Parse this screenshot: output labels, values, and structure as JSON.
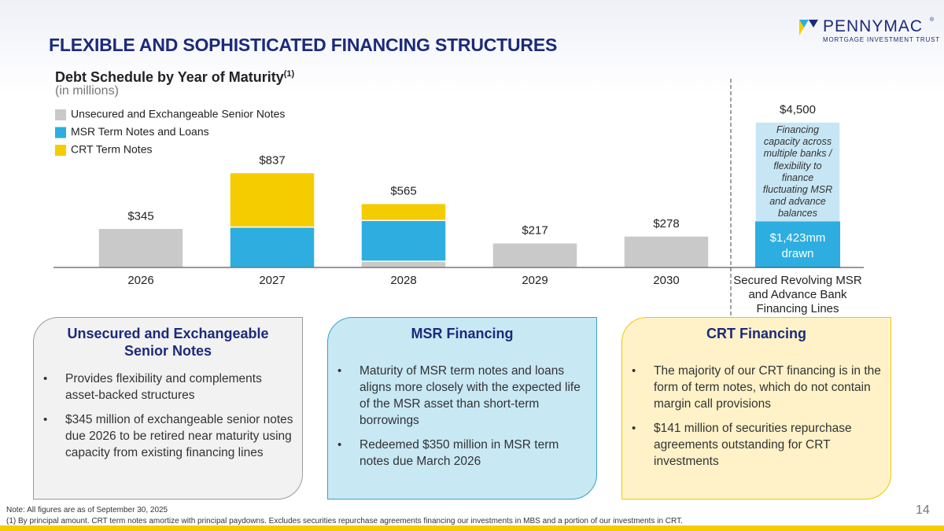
{
  "header": {
    "title": "FLEXIBLE AND SOPHISTICATED FINANCING STRUCTURES",
    "logo": {
      "name": "PENNYMAC",
      "mark": "®",
      "tagline": "MORTGAGE INVESTMENT TRUST"
    }
  },
  "chart_data": {
    "type": "bar",
    "stacked": true,
    "title": "Debt Schedule by Year of Maturity",
    "title_note": "(1)",
    "subtitle": "(in millions)",
    "categories": [
      "2026",
      "2027",
      "2028",
      "2029",
      "2030"
    ],
    "series": [
      {
        "name": "Unsecured and Exchangeable Senior Notes",
        "color": "#c9c9c9",
        "values": [
          345,
          0,
          55,
          217,
          278
        ]
      },
      {
        "name": "MSR Term Notes and Loans",
        "color": "#2eaee0",
        "values": [
          0,
          357,
          360,
          0,
          0
        ]
      },
      {
        "name": "CRT Term Notes",
        "color": "#f5cc00",
        "values": [
          0,
          480,
          150,
          0,
          0
        ]
      }
    ],
    "totals": [
      345,
      837,
      565,
      217,
      278
    ],
    "total_labels": [
      "$345",
      "$837",
      "$565",
      "$217",
      "$278"
    ],
    "facility": {
      "category": "Secured Revolving MSR and Advance Bank Financing Lines",
      "capacity": 4500,
      "capacity_label": "$4,500",
      "capacity_color": "#c7e6f5",
      "drawn": 1423,
      "drawn_label": "$1,423mm drawn",
      "drawn_color": "#2eaee0",
      "description": "Financing capacity across multiple banks / flexibility to finance fluctuating MSR and advance balances"
    }
  },
  "panels": [
    {
      "title": "Unsecured and Exchangeable Senior Notes",
      "bullets": [
        "Provides flexibility and complements asset-backed structures",
        "$345 million of exchangeable senior notes due 2026 to be retired near maturity using capacity from existing financing lines"
      ]
    },
    {
      "title": "MSR Financing",
      "bullets": [
        "Maturity of MSR term notes and loans aligns more closely with the expected life of the MSR asset than short-term borrowings",
        "Redeemed $350 million in MSR term notes due March 2026"
      ]
    },
    {
      "title": "CRT Financing",
      "bullets": [
        "The majority of our CRT financing is in the form of term notes, which do not contain margin call provisions",
        "$141 million of securities repurchase agreements outstanding for CRT investments"
      ]
    }
  ],
  "footer": {
    "note": "Note: All figures are as of September 30, 2025",
    "footnote": "(1) By principal amount. CRT term notes amortize with principal paydowns. Excludes securities repurchase agreements financing our investments in MBS and a portion of our investments in CRT.",
    "page": 14
  }
}
